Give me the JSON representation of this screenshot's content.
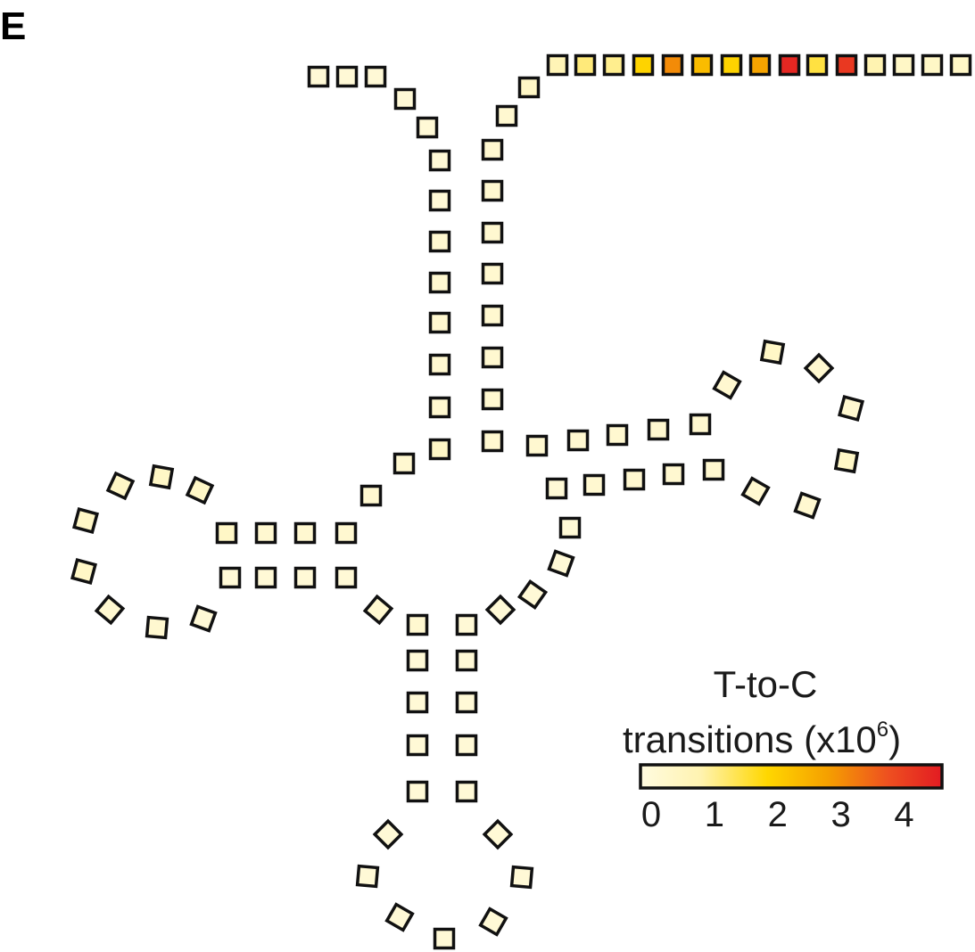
{
  "panel_label": "E",
  "legend": {
    "title_line1": "T-to-C",
    "title_line2": "transitions (x10",
    "title_sup": "6",
    "title_close": ")",
    "ticks": [
      "0",
      "1",
      "2",
      "3",
      "4"
    ],
    "colors": [
      "#fffbe0",
      "#fff3b0",
      "#ffd700",
      "#f5a000",
      "#ee5020",
      "#e21b22"
    ]
  },
  "arms": {
    "five_prime_start": {
      "values": [
        0.2,
        0.2,
        0.2
      ]
    },
    "acceptor_stem_5p": {
      "values": [
        0.2,
        0.2,
        0.2,
        0.2,
        0.3,
        0.3,
        0.3,
        0.3,
        0.3,
        0.5,
        0.3
      ]
    },
    "d_arm": {
      "values": [
        0.3,
        0.3,
        0.3,
        0.3,
        0.5,
        0.5,
        0.5,
        0.5,
        0.5,
        0.5,
        0.3,
        0.3,
        0.2,
        0.2,
        0.2,
        0.2,
        0.2,
        0.3,
        0.3
      ]
    },
    "anticodon_arm": {
      "values": [
        0.2,
        0.2,
        0.2,
        0.2,
        0.2,
        0.2,
        0.2,
        0.2,
        0.2,
        0.2,
        0.2,
        0.2,
        0.2,
        0.2,
        0.2,
        0.2,
        0.2,
        0.2,
        0.2,
        0.2,
        0.2
      ]
    },
    "t_arm": {
      "values": [
        0.3,
        0.3,
        0.3,
        0.3,
        0.3,
        0.3,
        0.5,
        0.3,
        0.3,
        0.5,
        0.3,
        0.3,
        0.3,
        0.3,
        0.3,
        0.3,
        0.3,
        0.3,
        0.3,
        0.3
      ]
    },
    "acceptor_stem_3p": {
      "values": [
        0.3,
        0.3,
        0.3,
        0.3,
        0.3,
        0.3,
        0.3,
        0.3,
        0.3,
        0.5,
        0.5,
        0.8
      ]
    },
    "three_prime_tail": {
      "values": [
        0.8,
        1.2,
        1.1,
        1.9,
        3.0,
        2.3,
        1.9,
        2.7,
        4.4,
        1.5,
        4.1,
        0.9,
        0.5,
        0.5,
        0.5,
        0.5
      ]
    }
  }
}
